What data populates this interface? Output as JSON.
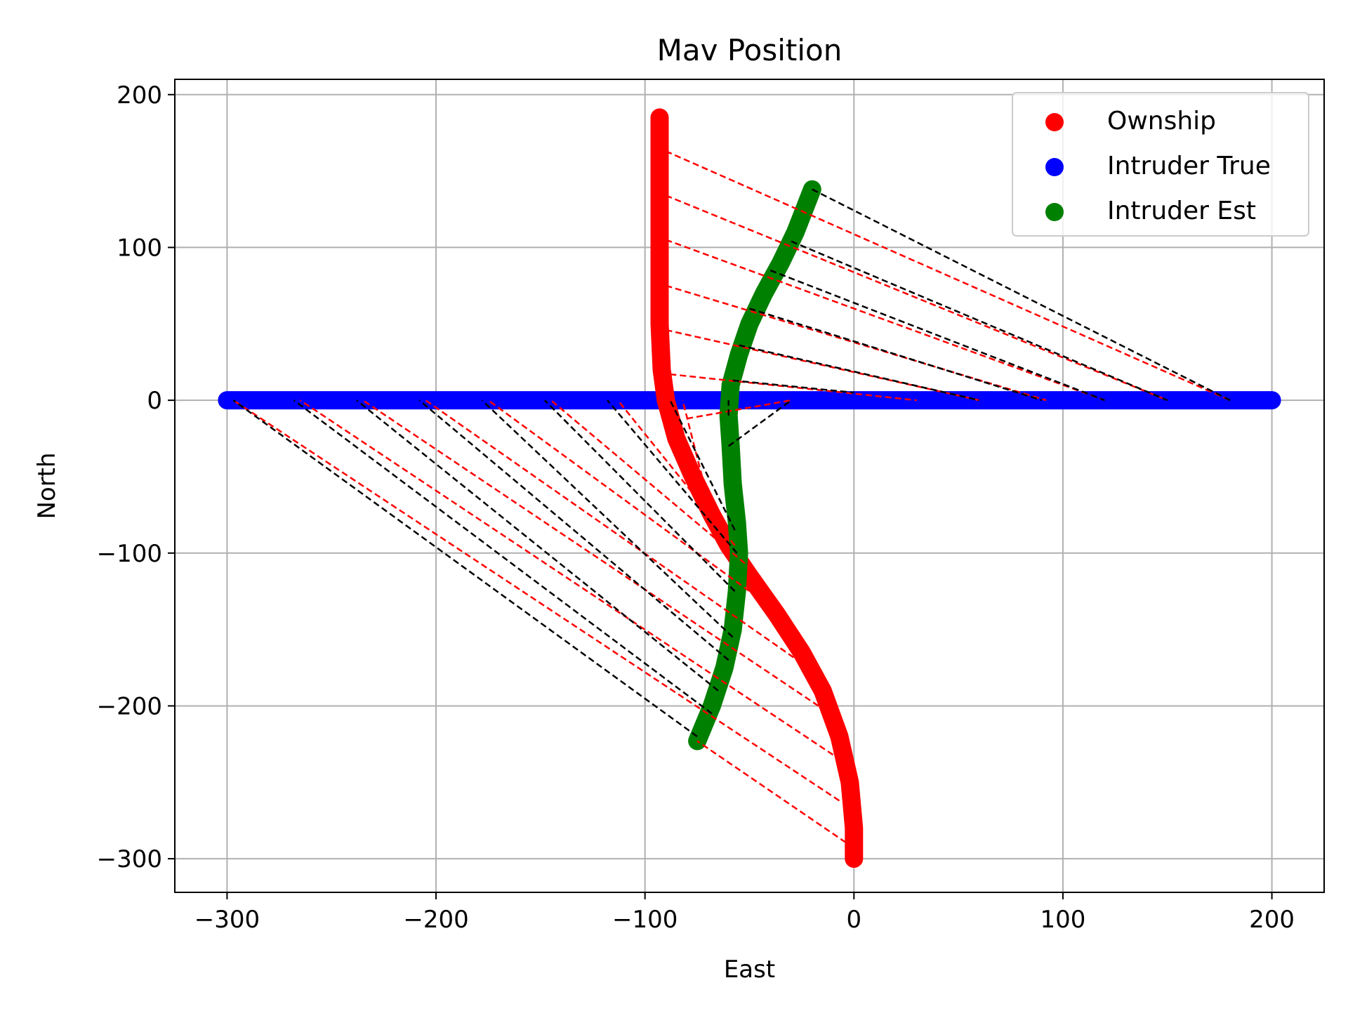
{
  "chart_data": {
    "type": "scatter",
    "title": "Mav Position",
    "xlabel": "East",
    "ylabel": "North",
    "xlim": [
      -325,
      225
    ],
    "ylim": [
      -322,
      210
    ],
    "xticks": [
      -300,
      -200,
      -100,
      0,
      100,
      200
    ],
    "yticks": [
      -300,
      -200,
      -100,
      0,
      100,
      200
    ],
    "xtick_labels": [
      "−300",
      "−200",
      "−100",
      "0",
      "100",
      "200"
    ],
    "ytick_labels": [
      "−300",
      "−200",
      "−100",
      "0",
      "100",
      "200"
    ],
    "grid": true,
    "legend_position": "top-right",
    "series": [
      {
        "name": "Ownship",
        "color": "#ff0000",
        "points": [
          [
            0,
            -300
          ],
          [
            0,
            -280
          ],
          [
            -2,
            -250
          ],
          [
            -7,
            -220
          ],
          [
            -15,
            -190
          ],
          [
            -25,
            -165
          ],
          [
            -37,
            -140
          ],
          [
            -50,
            -115
          ],
          [
            -60,
            -95
          ],
          [
            -68,
            -75
          ],
          [
            -77,
            -50
          ],
          [
            -85,
            -25
          ],
          [
            -90,
            0
          ],
          [
            -92,
            20
          ],
          [
            -93,
            50
          ],
          [
            -93,
            80
          ],
          [
            -93,
            110
          ],
          [
            -93,
            140
          ],
          [
            -93,
            170
          ],
          [
            -93,
            185
          ]
        ]
      },
      {
        "name": "Intruder True",
        "color": "#0000ff",
        "points": [
          [
            -300,
            0
          ],
          [
            -250,
            0
          ],
          [
            -200,
            0
          ],
          [
            -150,
            0
          ],
          [
            -100,
            0
          ],
          [
            -50,
            0
          ],
          [
            0,
            0
          ],
          [
            50,
            0
          ],
          [
            100,
            0
          ],
          [
            150,
            0
          ],
          [
            200,
            0
          ]
        ]
      },
      {
        "name": "Intruder Est",
        "color": "#008000",
        "points": [
          [
            -75,
            -223
          ],
          [
            -68,
            -200
          ],
          [
            -62,
            -175
          ],
          [
            -58,
            -150
          ],
          [
            -56,
            -125
          ],
          [
            -55,
            -100
          ],
          [
            -56,
            -80
          ],
          [
            -58,
            -55
          ],
          [
            -59,
            -30
          ],
          [
            -60,
            -10
          ],
          [
            -59,
            10
          ],
          [
            -55,
            30
          ],
          [
            -50,
            50
          ],
          [
            -43,
            70
          ],
          [
            -35,
            90
          ],
          [
            -28,
            110
          ],
          [
            -20,
            138
          ]
        ]
      }
    ],
    "red_dashed_segments": [
      [
        [
          0,
          -293
        ],
        [
          -75,
          -223
        ]
      ],
      [
        [
          -7,
          -262
        ],
        [
          -297,
          0
        ]
      ],
      [
        [
          -10,
          -232
        ],
        [
          -265,
          0
        ]
      ],
      [
        [
          -17,
          -200
        ],
        [
          -235,
          0
        ]
      ],
      [
        [
          -25,
          -172
        ],
        [
          -205,
          0
        ]
      ],
      [
        [
          -35,
          -140
        ],
        [
          -175,
          0
        ]
      ],
      [
        [
          -45,
          -115
        ],
        [
          -145,
          0
        ]
      ],
      [
        [
          -57,
          -95
        ],
        [
          -113,
          0
        ]
      ],
      [
        [
          -68,
          -75
        ],
        [
          -82,
          0
        ]
      ],
      [
        [
          -80,
          -12
        ],
        [
          -30,
          0
        ]
      ],
      [
        [
          -88,
          17
        ],
        [
          30,
          0
        ]
      ],
      [
        [
          -90,
          46
        ],
        [
          60,
          0
        ]
      ],
      [
        [
          -90,
          75
        ],
        [
          92,
          0
        ]
      ],
      [
        [
          -90,
          105
        ],
        [
          120,
          0
        ]
      ],
      [
        [
          -90,
          134
        ],
        [
          150,
          0
        ]
      ],
      [
        [
          -90,
          163
        ],
        [
          180,
          0
        ]
      ]
    ],
    "black_dashed_segments": [
      [
        [
          -75,
          -220
        ],
        [
          -297,
          0
        ]
      ],
      [
        [
          -68,
          -205
        ],
        [
          -268,
          0
        ]
      ],
      [
        [
          -65,
          -190
        ],
        [
          -238,
          0
        ]
      ],
      [
        [
          -60,
          -170
        ],
        [
          -208,
          0
        ]
      ],
      [
        [
          -58,
          -155
        ],
        [
          -178,
          0
        ]
      ],
      [
        [
          -57,
          -125
        ],
        [
          -148,
          0
        ]
      ],
      [
        [
          -56,
          -100
        ],
        [
          -118,
          0
        ]
      ],
      [
        [
          -57,
          -85
        ],
        [
          -88,
          0
        ]
      ],
      [
        [
          -60,
          -30
        ],
        [
          -30,
          0
        ]
      ],
      [
        [
          -60,
          -10
        ],
        [
          -60,
          0
        ]
      ],
      [
        [
          -58,
          13
        ],
        [
          0,
          5
        ]
      ],
      [
        [
          -55,
          36
        ],
        [
          60,
          0
        ]
      ],
      [
        [
          -50,
          60
        ],
        [
          90,
          0
        ]
      ],
      [
        [
          -40,
          85
        ],
        [
          120,
          0
        ]
      ],
      [
        [
          -30,
          104
        ],
        [
          150,
          0
        ]
      ],
      [
        [
          -20,
          138
        ],
        [
          180,
          0
        ]
      ]
    ]
  }
}
